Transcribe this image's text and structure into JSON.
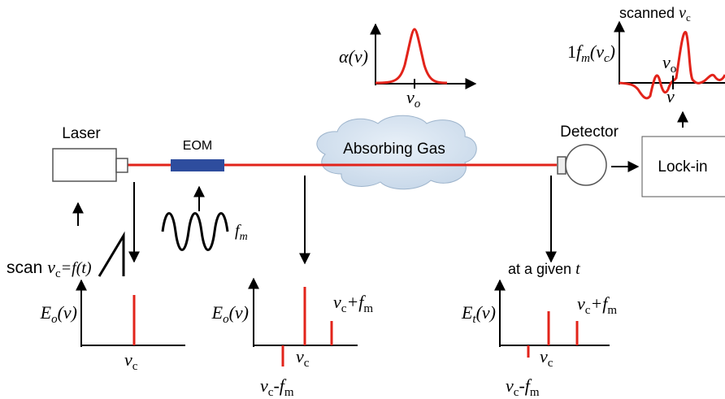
{
  "components": {
    "laser": "Laser",
    "eom": "EOM",
    "gas": "Absorbing Gas",
    "detector": "Detector",
    "lockin": "Lock-in"
  },
  "absorption_plot": {
    "y_label": "α(ν)",
    "x_label": [
      "ν",
      "o"
    ]
  },
  "signal_plot": {
    "title": [
      "scanned ",
      "ν",
      "c"
    ],
    "y_label": [
      "1",
      "f",
      "m",
      "(ν",
      "c",
      ")"
    ],
    "peak_label": [
      "ν",
      "o"
    ],
    "x_label": "ν"
  },
  "scan_label": [
    "scan ",
    "ν",
    "c",
    "=f(t)"
  ],
  "modulation_label": [
    "f",
    "m"
  ],
  "laser_spectrum": {
    "y_label": [
      "E",
      "o",
      "(ν)"
    ],
    "carrier": [
      "ν",
      "c"
    ]
  },
  "modulated_spectrum": {
    "y_label": [
      "E",
      "o",
      "(ν)"
    ],
    "carrier": [
      "ν",
      "c"
    ],
    "upper": [
      "ν",
      "c",
      "+f",
      "m"
    ],
    "lower": [
      "ν",
      "c",
      "-f",
      "m"
    ]
  },
  "transmitted_spectrum": {
    "note": [
      "at a given ",
      "t"
    ],
    "y_label": [
      "E",
      "t",
      "(ν)"
    ],
    "carrier": [
      "ν",
      "c"
    ],
    "upper": [
      "ν",
      "c",
      "+f",
      "m"
    ],
    "lower": [
      "ν",
      "c",
      "-f",
      "m"
    ]
  }
}
